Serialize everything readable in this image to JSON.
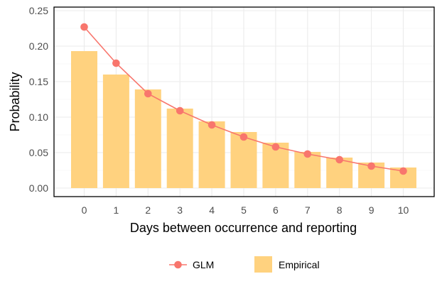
{
  "chart_data": {
    "type": "bar",
    "title": "",
    "xlabel": "Days between occurrence and reporting",
    "ylabel": "Probability",
    "categories": [
      0,
      1,
      2,
      3,
      4,
      5,
      6,
      7,
      8,
      9,
      10
    ],
    "ylim": [
      -0.012,
      0.255
    ],
    "yticks": [
      0.0,
      0.05,
      0.1,
      0.15,
      0.2,
      0.25
    ],
    "ytick_labels": [
      "0.00",
      "0.05",
      "0.10",
      "0.15",
      "0.20",
      "0.25"
    ],
    "grid": true,
    "legend_position": "bottom",
    "series": [
      {
        "name": "Empirical",
        "kind": "bar",
        "color": "#FFD27F",
        "values": [
          0.193,
          0.16,
          0.139,
          0.112,
          0.094,
          0.079,
          0.064,
          0.051,
          0.043,
          0.036,
          0.029
        ]
      },
      {
        "name": "GLM",
        "kind": "line",
        "color": "#F8766D",
        "values": [
          0.227,
          0.176,
          0.133,
          0.109,
          0.089,
          0.072,
          0.058,
          0.048,
          0.04,
          0.031,
          0.024
        ]
      }
    ]
  }
}
